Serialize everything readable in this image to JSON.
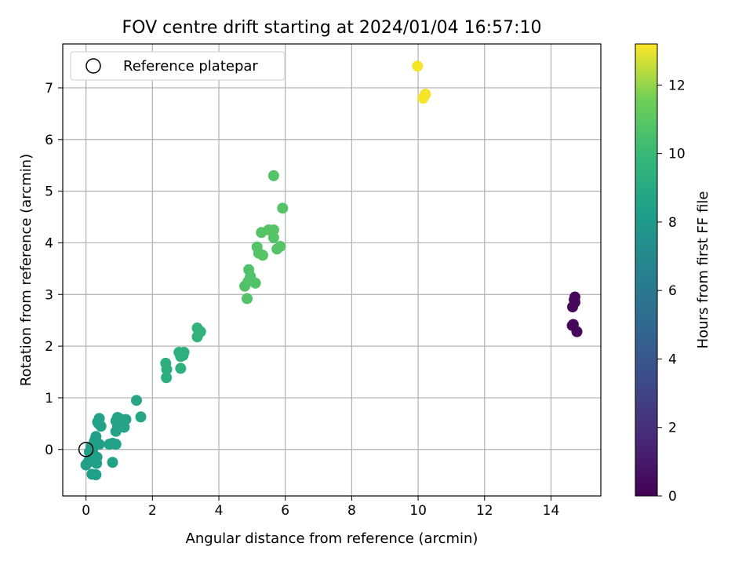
{
  "chart_data": {
    "type": "scatter",
    "title": "FOV centre drift starting at 2024/01/04 16:57:10",
    "xlabel": "Angular distance from reference (arcmin)",
    "ylabel": "Rotation from reference (arcmin)",
    "xlim": [
      -0.7,
      15.5
    ],
    "ylim": [
      -0.9,
      7.85
    ],
    "xticks": [
      0,
      2,
      4,
      6,
      8,
      10,
      12,
      14
    ],
    "yticks": [
      0,
      1,
      2,
      3,
      4,
      5,
      6,
      7
    ],
    "grid": true,
    "legend": {
      "placement": "top-left",
      "entries": [
        "Reference platepar"
      ]
    },
    "reference_point": {
      "x": 0,
      "y": 0
    },
    "colorbar": {
      "label": "Hours from first FF file",
      "range": [
        0,
        13.2
      ],
      "ticks": [
        0,
        2,
        4,
        6,
        8,
        10,
        12
      ],
      "colormap": "viridis"
    },
    "series": [
      {
        "points": [
          {
            "x": 14.72,
            "y": 2.95,
            "c": 0.3
          },
          {
            "x": 14.7,
            "y": 2.9,
            "c": 0.3
          },
          {
            "x": 14.72,
            "y": 2.85,
            "c": 0.3
          },
          {
            "x": 14.65,
            "y": 2.76,
            "c": 0.3
          },
          {
            "x": 14.67,
            "y": 2.42,
            "c": 0.3
          },
          {
            "x": 14.64,
            "y": 2.4,
            "c": 0.3
          },
          {
            "x": 14.78,
            "y": 2.28,
            "c": 0.3
          },
          {
            "x": 0.0,
            "y": -0.3,
            "c": 8.3
          },
          {
            "x": 0.05,
            "y": -0.26,
            "c": 8.3
          },
          {
            "x": 0.1,
            "y": -0.2,
            "c": 8.3
          },
          {
            "x": 0.15,
            "y": -0.12,
            "c": 8.3
          },
          {
            "x": 0.2,
            "y": -0.05,
            "c": 8.3
          },
          {
            "x": 0.22,
            "y": 0.05,
            "c": 8.3
          },
          {
            "x": 0.25,
            "y": 0.15,
            "c": 8.3
          },
          {
            "x": 0.28,
            "y": 0.2,
            "c": 8.3
          },
          {
            "x": 0.3,
            "y": 0.25,
            "c": 8.3
          },
          {
            "x": 0.18,
            "y": -0.48,
            "c": 8.3
          },
          {
            "x": 0.3,
            "y": -0.49,
            "c": 8.3
          },
          {
            "x": 0.32,
            "y": -0.27,
            "c": 8.3
          },
          {
            "x": 0.33,
            "y": -0.15,
            "c": 8.3
          },
          {
            "x": 0.1,
            "y": -0.05,
            "c": 8.3
          },
          {
            "x": 0.15,
            "y": 0.05,
            "c": 8.3
          },
          {
            "x": 0.4,
            "y": 0.1,
            "c": 8.3
          },
          {
            "x": 0.38,
            "y": 0.5,
            "c": 8.5
          },
          {
            "x": 0.35,
            "y": 0.53,
            "c": 8.5
          },
          {
            "x": 0.4,
            "y": 0.6,
            "c": 8.5
          },
          {
            "x": 0.45,
            "y": 0.45,
            "c": 8.5
          },
          {
            "x": 0.7,
            "y": 0.1,
            "c": 8.5
          },
          {
            "x": 0.8,
            "y": 0.12,
            "c": 8.5
          },
          {
            "x": 0.9,
            "y": 0.1,
            "c": 8.5
          },
          {
            "x": 0.8,
            "y": -0.25,
            "c": 8.5
          },
          {
            "x": 0.9,
            "y": 0.35,
            "c": 8.6
          },
          {
            "x": 0.95,
            "y": 0.45,
            "c": 8.6
          },
          {
            "x": 0.9,
            "y": 0.55,
            "c": 8.6
          },
          {
            "x": 0.95,
            "y": 0.62,
            "c": 8.6
          },
          {
            "x": 1.0,
            "y": 0.6,
            "c": 8.6
          },
          {
            "x": 1.05,
            "y": 0.52,
            "c": 8.6
          },
          {
            "x": 1.15,
            "y": 0.43,
            "c": 8.6
          },
          {
            "x": 1.2,
            "y": 0.58,
            "c": 8.6
          },
          {
            "x": 1.52,
            "y": 0.95,
            "c": 8.8
          },
          {
            "x": 1.65,
            "y": 0.63,
            "c": 8.8
          },
          {
            "x": 2.4,
            "y": 1.67,
            "c": 9.3
          },
          {
            "x": 2.43,
            "y": 1.55,
            "c": 9.3
          },
          {
            "x": 2.42,
            "y": 1.39,
            "c": 9.3
          },
          {
            "x": 2.85,
            "y": 1.57,
            "c": 9.4
          },
          {
            "x": 2.8,
            "y": 1.88,
            "c": 9.4
          },
          {
            "x": 2.85,
            "y": 1.8,
            "c": 9.4
          },
          {
            "x": 2.92,
            "y": 1.82,
            "c": 9.4
          },
          {
            "x": 2.95,
            "y": 1.88,
            "c": 9.4
          },
          {
            "x": 3.35,
            "y": 2.35,
            "c": 9.6
          },
          {
            "x": 3.35,
            "y": 2.18,
            "c": 9.6
          },
          {
            "x": 3.4,
            "y": 2.25,
            "c": 9.6
          },
          {
            "x": 3.45,
            "y": 2.28,
            "c": 9.6
          },
          {
            "x": 4.85,
            "y": 2.92,
            "c": 10.7
          },
          {
            "x": 4.78,
            "y": 3.16,
            "c": 10.7
          },
          {
            "x": 4.88,
            "y": 3.25,
            "c": 10.7
          },
          {
            "x": 4.95,
            "y": 3.35,
            "c": 10.7
          },
          {
            "x": 4.9,
            "y": 3.48,
            "c": 10.7
          },
          {
            "x": 5.1,
            "y": 3.22,
            "c": 10.7
          },
          {
            "x": 5.15,
            "y": 3.92,
            "c": 10.8
          },
          {
            "x": 5.2,
            "y": 3.8,
            "c": 10.8
          },
          {
            "x": 5.32,
            "y": 3.76,
            "c": 10.8
          },
          {
            "x": 5.28,
            "y": 4.2,
            "c": 10.8
          },
          {
            "x": 5.5,
            "y": 4.25,
            "c": 10.8
          },
          {
            "x": 5.65,
            "y": 4.25,
            "c": 10.8
          },
          {
            "x": 5.65,
            "y": 4.1,
            "c": 10.8
          },
          {
            "x": 5.75,
            "y": 3.88,
            "c": 10.8
          },
          {
            "x": 5.85,
            "y": 3.93,
            "c": 10.8
          },
          {
            "x": 5.65,
            "y": 5.3,
            "c": 10.8
          },
          {
            "x": 5.92,
            "y": 4.67,
            "c": 10.8
          },
          {
            "x": 9.98,
            "y": 7.42,
            "c": 13.1
          },
          {
            "x": 10.15,
            "y": 6.8,
            "c": 13.1
          },
          {
            "x": 10.2,
            "y": 6.85,
            "c": 13.1
          },
          {
            "x": 10.22,
            "y": 6.88,
            "c": 13.1
          }
        ]
      }
    ]
  }
}
